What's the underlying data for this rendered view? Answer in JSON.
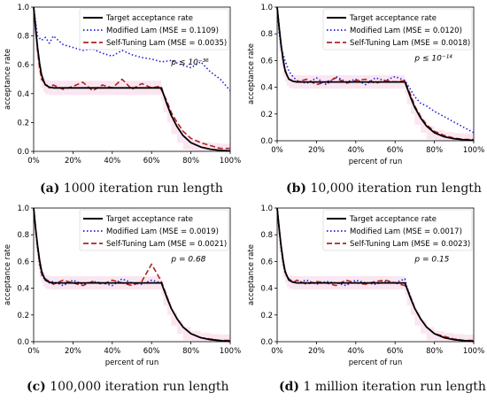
{
  "chart_data": [
    {
      "type": "line",
      "caption_label": "(a)",
      "caption_text": "1000 iteration run length",
      "xlabel": "",
      "ylabel": "acceptance rate",
      "xlim": [
        0,
        100
      ],
      "ylim": [
        0,
        1.0
      ],
      "x_ticks": [
        "0%",
        "20%",
        "40%",
        "60%",
        "80%",
        "100%"
      ],
      "y_ticks": [
        "0.0",
        "0.2",
        "0.4",
        "0.6",
        "0.8",
        "1.0"
      ],
      "legend": [
        "Target acceptance rate",
        "Modified Lam (MSE = 0.1109)",
        "Self-Tuning Lam (MSE = 0.0035)"
      ],
      "annotation": "p ≤ 10⁻³⁶",
      "series": [
        {
          "name": "Target acceptance rate",
          "x": [
            0,
            1,
            2,
            3,
            4,
            5,
            6,
            8,
            10,
            15,
            20,
            30,
            40,
            50,
            60,
            65,
            66,
            68,
            70,
            73,
            76,
            80,
            85,
            90,
            95,
            100
          ],
          "values": [
            1.0,
            0.85,
            0.72,
            0.61,
            0.53,
            0.49,
            0.46,
            0.445,
            0.44,
            0.44,
            0.44,
            0.44,
            0.44,
            0.44,
            0.44,
            0.44,
            0.4,
            0.32,
            0.25,
            0.17,
            0.11,
            0.06,
            0.03,
            0.015,
            0.007,
            0.003
          ]
        },
        {
          "name": "Modified Lam (MSE = 0.1109)",
          "x": [
            0,
            1,
            2,
            4,
            6,
            8,
            10,
            15,
            20,
            25,
            30,
            35,
            40,
            45,
            50,
            55,
            60,
            65,
            70,
            75,
            80,
            85,
            90,
            95,
            100
          ],
          "values": [
            1.0,
            0.9,
            0.8,
            0.77,
            0.79,
            0.75,
            0.8,
            0.74,
            0.72,
            0.7,
            0.71,
            0.68,
            0.66,
            0.7,
            0.67,
            0.65,
            0.64,
            0.62,
            0.63,
            0.6,
            0.58,
            0.62,
            0.55,
            0.5,
            0.42
          ]
        },
        {
          "name": "Self-Tuning Lam (MSE = 0.0035)",
          "x": [
            0,
            1,
            2,
            3,
            4,
            6,
            8,
            10,
            15,
            20,
            25,
            30,
            35,
            40,
            45,
            50,
            55,
            60,
            64,
            66,
            68,
            70,
            73,
            76,
            80,
            85,
            90,
            95,
            100
          ],
          "values": [
            1.0,
            0.88,
            0.7,
            0.58,
            0.5,
            0.47,
            0.44,
            0.46,
            0.43,
            0.45,
            0.48,
            0.42,
            0.46,
            0.44,
            0.5,
            0.43,
            0.47,
            0.44,
            0.45,
            0.4,
            0.34,
            0.27,
            0.2,
            0.14,
            0.09,
            0.06,
            0.04,
            0.02,
            0.02
          ]
        }
      ]
    },
    {
      "type": "line",
      "caption_label": "(b)",
      "caption_text": "10,000 iteration run length",
      "xlabel": "percent of run",
      "ylabel": "acceptance rate",
      "xlim": [
        0,
        100
      ],
      "ylim": [
        0,
        1.0
      ],
      "x_ticks": [
        "0%",
        "20%",
        "40%",
        "60%",
        "80%",
        "100%"
      ],
      "y_ticks": [
        "0.0",
        "0.2",
        "0.4",
        "0.6",
        "0.8",
        "1.0"
      ],
      "legend": [
        "Target acceptance rate",
        "Modified Lam (MSE = 0.0120)",
        "Self-Tuning Lam (MSE = 0.0018)"
      ],
      "annotation": "p ≤ 10⁻¹⁴",
      "series": [
        {
          "name": "Target acceptance rate",
          "x": [
            0,
            1,
            2,
            3,
            4,
            5,
            6,
            8,
            10,
            15,
            20,
            30,
            40,
            50,
            60,
            65,
            66,
            68,
            70,
            73,
            76,
            80,
            85,
            90,
            95,
            100
          ],
          "values": [
            1.0,
            0.85,
            0.72,
            0.61,
            0.53,
            0.49,
            0.46,
            0.445,
            0.44,
            0.44,
            0.44,
            0.44,
            0.44,
            0.44,
            0.44,
            0.44,
            0.4,
            0.32,
            0.25,
            0.17,
            0.11,
            0.06,
            0.03,
            0.015,
            0.007,
            0.003
          ]
        },
        {
          "name": "Modified Lam (MSE = 0.0120)",
          "x": [
            0,
            1,
            2,
            4,
            6,
            8,
            10,
            15,
            20,
            25,
            30,
            35,
            40,
            45,
            50,
            55,
            60,
            65,
            68,
            70,
            73,
            76,
            80,
            85,
            90,
            95,
            100
          ],
          "values": [
            1.0,
            0.82,
            0.7,
            0.6,
            0.52,
            0.48,
            0.45,
            0.43,
            0.47,
            0.42,
            0.48,
            0.44,
            0.46,
            0.42,
            0.47,
            0.45,
            0.48,
            0.45,
            0.38,
            0.33,
            0.28,
            0.26,
            0.22,
            0.18,
            0.14,
            0.1,
            0.06
          ]
        },
        {
          "name": "Self-Tuning Lam (MSE = 0.0018)",
          "x": [
            0,
            1,
            2,
            3,
            4,
            6,
            8,
            10,
            15,
            20,
            25,
            30,
            35,
            40,
            45,
            50,
            55,
            60,
            65,
            66,
            68,
            70,
            73,
            76,
            80,
            85,
            90,
            95,
            100
          ],
          "values": [
            1.0,
            0.86,
            0.72,
            0.6,
            0.52,
            0.46,
            0.45,
            0.44,
            0.46,
            0.42,
            0.44,
            0.47,
            0.43,
            0.45,
            0.46,
            0.43,
            0.45,
            0.44,
            0.45,
            0.41,
            0.34,
            0.26,
            0.18,
            0.12,
            0.07,
            0.04,
            0.02,
            0.01,
            0.01
          ]
        }
      ]
    },
    {
      "type": "line",
      "caption_label": "(c)",
      "caption_text": "100,000 iteration run length",
      "xlabel": "percent of run",
      "ylabel": "acceptance rate",
      "xlim": [
        0,
        100
      ],
      "ylim": [
        0,
        1.0
      ],
      "x_ticks": [
        "0%",
        "20%",
        "40%",
        "60%",
        "80%",
        "100%"
      ],
      "y_ticks": [
        "0.0",
        "0.2",
        "0.4",
        "0.6",
        "0.8",
        "1.0"
      ],
      "legend": [
        "Target acceptance rate",
        "Modified Lam (MSE = 0.0019)",
        "Self-Tuning Lam (MSE = 0.0021)"
      ],
      "annotation": "p = 0.68",
      "series": [
        {
          "name": "Target acceptance rate",
          "x": [
            0,
            1,
            2,
            3,
            4,
            5,
            6,
            8,
            10,
            15,
            20,
            30,
            40,
            50,
            60,
            65,
            66,
            68,
            70,
            73,
            76,
            80,
            85,
            90,
            95,
            100
          ],
          "values": [
            1.0,
            0.85,
            0.72,
            0.61,
            0.53,
            0.49,
            0.46,
            0.445,
            0.44,
            0.44,
            0.44,
            0.44,
            0.44,
            0.44,
            0.44,
            0.44,
            0.4,
            0.32,
            0.25,
            0.17,
            0.11,
            0.06,
            0.03,
            0.015,
            0.007,
            0.003
          ]
        },
        {
          "name": "Modified Lam (MSE = 0.0019)",
          "x": [
            0,
            1,
            2,
            3,
            4,
            6,
            8,
            10,
            15,
            20,
            25,
            30,
            35,
            40,
            45,
            50,
            55,
            60,
            65,
            66,
            68,
            70,
            73,
            76,
            80,
            85,
            90,
            95,
            100
          ],
          "values": [
            1.0,
            0.84,
            0.7,
            0.58,
            0.5,
            0.46,
            0.44,
            0.45,
            0.42,
            0.46,
            0.43,
            0.45,
            0.44,
            0.42,
            0.47,
            0.44,
            0.43,
            0.46,
            0.44,
            0.4,
            0.33,
            0.25,
            0.17,
            0.11,
            0.06,
            0.03,
            0.02,
            0.01,
            0.0
          ]
        },
        {
          "name": "Self-Tuning Lam (MSE = 0.0021)",
          "x": [
            0,
            1,
            2,
            3,
            4,
            6,
            8,
            10,
            15,
            20,
            25,
            30,
            35,
            40,
            45,
            50,
            55,
            60,
            65,
            66,
            68,
            70,
            73,
            76,
            80,
            85,
            90,
            95,
            100
          ],
          "values": [
            1.0,
            0.85,
            0.71,
            0.59,
            0.51,
            0.47,
            0.45,
            0.43,
            0.46,
            0.44,
            0.42,
            0.45,
            0.43,
            0.46,
            0.44,
            0.42,
            0.45,
            0.58,
            0.45,
            0.41,
            0.33,
            0.25,
            0.17,
            0.11,
            0.06,
            0.03,
            0.02,
            0.01,
            0.01
          ]
        }
      ]
    },
    {
      "type": "line",
      "caption_label": "(d)",
      "caption_text": "1 million iteration run length",
      "xlabel": "percent of run",
      "ylabel": "acceptance rate",
      "xlim": [
        0,
        100
      ],
      "ylim": [
        0,
        1.0
      ],
      "x_ticks": [
        "0%",
        "20%",
        "40%",
        "60%",
        "80%",
        "100%"
      ],
      "y_ticks": [
        "0.0",
        "0.2",
        "0.4",
        "0.6",
        "0.8",
        "1.0"
      ],
      "legend": [
        "Target acceptance rate",
        "Modified Lam (MSE = 0.0017)",
        "Self-Tuning Lam (MSE = 0.0023)"
      ],
      "annotation": "p = 0.15",
      "series": [
        {
          "name": "Target acceptance rate",
          "x": [
            0,
            1,
            2,
            3,
            4,
            5,
            6,
            8,
            10,
            15,
            20,
            30,
            40,
            50,
            60,
            65,
            66,
            68,
            70,
            73,
            76,
            80,
            85,
            90,
            95,
            100
          ],
          "values": [
            1.0,
            0.85,
            0.72,
            0.61,
            0.53,
            0.49,
            0.46,
            0.445,
            0.44,
            0.44,
            0.44,
            0.44,
            0.44,
            0.44,
            0.44,
            0.44,
            0.4,
            0.32,
            0.25,
            0.17,
            0.11,
            0.06,
            0.03,
            0.015,
            0.007,
            0.003
          ]
        },
        {
          "name": "Modified Lam (MSE = 0.0017)",
          "x": [
            0,
            1,
            2,
            3,
            4,
            6,
            8,
            10,
            15,
            20,
            25,
            30,
            35,
            40,
            45,
            50,
            55,
            60,
            65,
            66,
            68,
            70,
            73,
            76,
            80,
            85,
            90,
            95,
            100
          ],
          "values": [
            1.0,
            0.84,
            0.7,
            0.59,
            0.51,
            0.47,
            0.45,
            0.44,
            0.46,
            0.43,
            0.45,
            0.44,
            0.42,
            0.46,
            0.44,
            0.43,
            0.45,
            0.44,
            0.47,
            0.41,
            0.33,
            0.25,
            0.17,
            0.11,
            0.06,
            0.03,
            0.02,
            0.01,
            0.0
          ]
        },
        {
          "name": "Self-Tuning Lam (MSE = 0.0023)",
          "x": [
            0,
            1,
            2,
            3,
            4,
            6,
            8,
            10,
            15,
            20,
            25,
            30,
            35,
            40,
            45,
            50,
            55,
            60,
            65,
            66,
            68,
            70,
            73,
            76,
            80,
            85,
            90,
            95,
            100
          ],
          "values": [
            1.0,
            0.86,
            0.71,
            0.6,
            0.52,
            0.47,
            0.44,
            0.46,
            0.43,
            0.45,
            0.44,
            0.42,
            0.46,
            0.44,
            0.43,
            0.45,
            0.46,
            0.44,
            0.42,
            0.4,
            0.33,
            0.25,
            0.17,
            0.11,
            0.06,
            0.04,
            0.02,
            0.01,
            0.01
          ]
        }
      ]
    }
  ],
  "colors": {
    "target": "#000000",
    "modified": "#1f1fd6",
    "self_tuning": "#b22222",
    "shade": "#f2b8d8"
  }
}
